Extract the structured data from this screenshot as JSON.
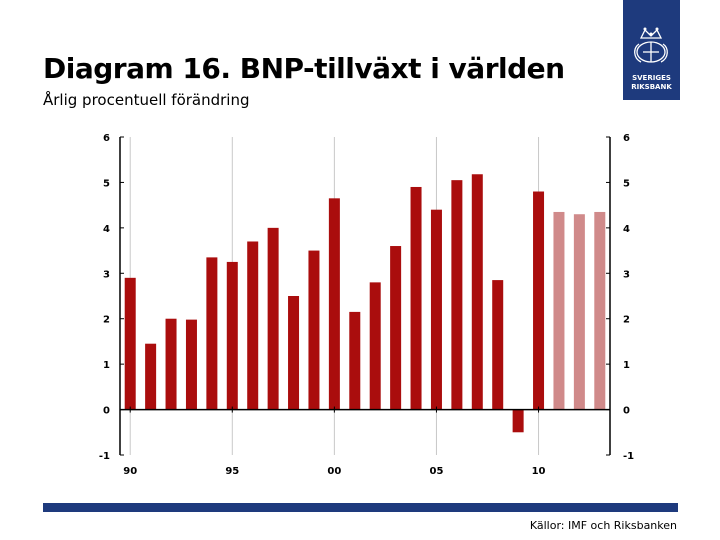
{
  "title": "Diagram 16. BNP-tillväxt i världen",
  "subtitle": "Årlig procentuell förändring",
  "source": "Källor: IMF och Riksbanken",
  "logo": {
    "line1": "SVERIGES",
    "line2": "RIKSBANK"
  },
  "colors": {
    "actual": "#aa0d0d",
    "forecast": "#d08a8a",
    "brand": "#1e3a7d"
  },
  "chart_data": {
    "type": "bar",
    "title": "Diagram 16. BNP-tillväxt i världen",
    "ylabel": "Årlig procentuell förändring",
    "ylim": [
      -1,
      6
    ],
    "y_ticks": [
      6,
      5,
      4,
      3,
      2,
      1,
      0,
      -1
    ],
    "x_tick_labels": [
      {
        "year": 1990,
        "label": "90"
      },
      {
        "year": 1995,
        "label": "95"
      },
      {
        "year": 2000,
        "label": "00"
      },
      {
        "year": 2005,
        "label": "05"
      },
      {
        "year": 2010,
        "label": "10"
      }
    ],
    "categories": [
      1990,
      1991,
      1992,
      1993,
      1994,
      1995,
      1996,
      1997,
      1998,
      1999,
      2000,
      2001,
      2002,
      2003,
      2004,
      2005,
      2006,
      2007,
      2008,
      2009,
      2010,
      2011,
      2012,
      2013
    ],
    "values": [
      2.9,
      1.45,
      2.0,
      1.98,
      3.35,
      3.25,
      3.7,
      4.0,
      2.5,
      3.5,
      4.65,
      2.15,
      2.8,
      3.6,
      4.9,
      4.4,
      5.05,
      5.18,
      2.85,
      -0.5,
      4.8,
      4.35,
      4.3,
      4.35
    ],
    "forecast_from": 2011,
    "grid": true
  }
}
